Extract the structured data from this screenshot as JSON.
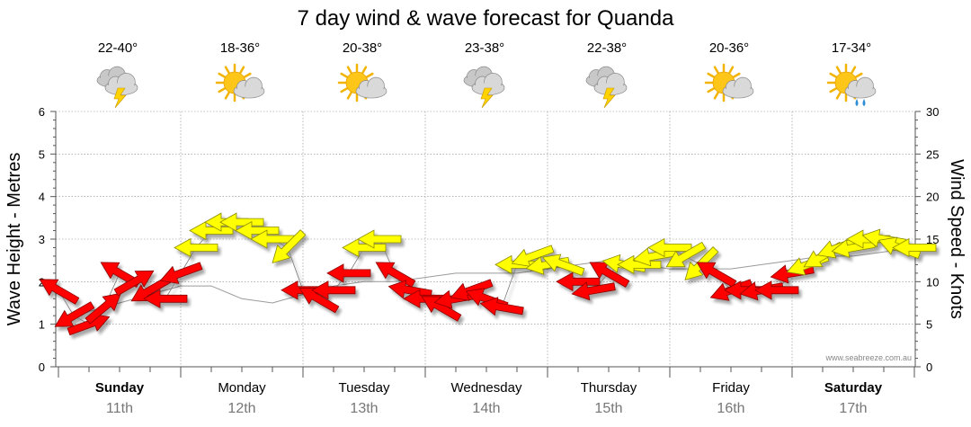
{
  "chart_data": {
    "type": "line",
    "title": "7 day wind & wave forecast for Quanda",
    "ylabel_left": "Wave Height - Metres",
    "ylabel_right": "Wind Speed - Knots",
    "ylim_left": [
      0,
      6
    ],
    "ylim_right": [
      0,
      30
    ],
    "yticks_left": [
      "0",
      "1",
      "2",
      "3",
      "4",
      "5",
      "6"
    ],
    "yticks_right": [
      "0",
      "5",
      "10",
      "15",
      "20",
      "25",
      "30"
    ],
    "watermark": "www.seabreeze.com.au",
    "days": [
      {
        "day": "Sunday",
        "date": "11th",
        "temp": "22-40°",
        "icon": "storm-cloud-icon",
        "bold": true
      },
      {
        "day": "Monday",
        "date": "12th",
        "temp": "18-36°",
        "icon": "sun-cloud-icon",
        "bold": false
      },
      {
        "day": "Tuesday",
        "date": "13th",
        "temp": "20-38°",
        "icon": "sun-cloud-icon",
        "bold": false
      },
      {
        "day": "Wednesday",
        "date": "14th",
        "temp": "23-38°",
        "icon": "storm-cloud-icon",
        "bold": false
      },
      {
        "day": "Thursday",
        "date": "15th",
        "temp": "22-38°",
        "icon": "storm-cloud-icon",
        "bold": false
      },
      {
        "day": "Friday",
        "date": "16th",
        "temp": "20-36°",
        "icon": "sun-cloud-icon",
        "bold": false
      },
      {
        "day": "Saturday",
        "date": "17th",
        "temp": "17-34°",
        "icon": "sun-rain-icon",
        "bold": true
      }
    ],
    "wave_series": {
      "name": "Wave Height (m)",
      "x_hours": [
        0,
        6,
        12,
        18,
        24,
        30,
        36,
        42,
        48,
        54,
        60,
        66,
        72,
        78,
        84,
        90,
        96,
        102,
        108,
        114,
        120,
        126,
        132,
        138,
        144,
        150,
        156,
        162,
        168
      ],
      "values": [
        1.0,
        1.3,
        1.5,
        1.7,
        1.9,
        1.9,
        1.6,
        1.5,
        1.7,
        1.9,
        2.0,
        2.0,
        2.1,
        2.2,
        2.2,
        2.2,
        2.3,
        2.4,
        2.5,
        2.4,
        2.3,
        2.3,
        2.3,
        2.4,
        2.5,
        2.6,
        2.6,
        2.7,
        2.8
      ]
    },
    "wind_series": {
      "name": "Wind Speed (kt)",
      "x_hours": [
        0,
        3,
        6,
        9,
        12,
        15,
        18,
        21,
        24,
        27,
        30,
        33,
        36,
        39,
        42,
        45,
        48,
        51,
        54,
        57,
        60,
        63,
        66,
        69,
        72,
        75,
        78,
        81,
        84,
        87,
        90,
        93,
        96,
        99,
        102,
        105,
        108,
        111,
        114,
        117,
        120,
        123,
        126,
        129,
        132,
        135,
        138,
        141,
        144,
        147,
        150,
        153,
        156,
        159,
        162,
        165,
        168
      ],
      "values": [
        9,
        6,
        5,
        7,
        11,
        10,
        9,
        8,
        11,
        14,
        16,
        17,
        17,
        16,
        15,
        14,
        9,
        8,
        9,
        11,
        14,
        15,
        11,
        9,
        8,
        7,
        8,
        9,
        8,
        7,
        12,
        13,
        12,
        12,
        10,
        9,
        11,
        12,
        12,
        13,
        14,
        13,
        12,
        11,
        9,
        9,
        9,
        9,
        11,
        12,
        13,
        14,
        14,
        15,
        15,
        14,
        14
      ],
      "directions_deg": [
        120,
        60,
        250,
        230,
        120,
        240,
        60,
        90,
        70,
        90,
        90,
        90,
        90,
        90,
        90,
        45,
        90,
        120,
        90,
        90,
        90,
        90,
        120,
        100,
        90,
        120,
        80,
        70,
        110,
        100,
        90,
        70,
        80,
        110,
        90,
        80,
        120,
        100,
        90,
        80,
        90,
        60,
        45,
        120,
        70,
        90,
        80,
        90,
        80,
        70,
        60,
        70,
        80,
        90,
        100,
        110,
        90
      ]
    },
    "wind_color_threshold_kt": 12
  }
}
